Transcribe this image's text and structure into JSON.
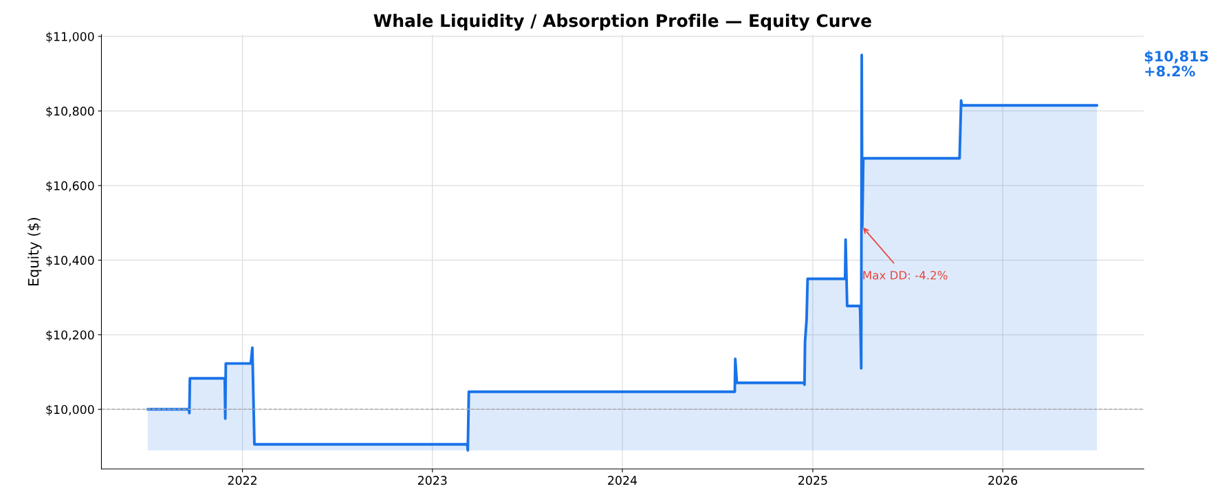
{
  "chart_data": {
    "type": "area",
    "title": "Whale Liquidity / Absorption Profile — Equity Curve",
    "ylabel": "Equity ($)",
    "x": [
      "2021-07-03",
      "2021-09-20",
      "2021-09-21",
      "2021-09-22",
      "2021-11-28",
      "2021-11-29",
      "2021-11-30",
      "2022-01-17",
      "2022-01-20",
      "2022-01-24",
      "2023-03-09",
      "2023-03-10",
      "2023-03-12",
      "2024-08-04",
      "2024-08-05",
      "2024-08-08",
      "2024-12-15",
      "2024-12-16",
      "2024-12-17",
      "2024-12-20",
      "2024-12-22",
      "2025-03-04",
      "2025-03-05",
      "2025-03-08",
      "2025-04-01",
      "2025-04-02",
      "2025-04-04",
      "2025-04-05",
      "2025-04-06",
      "2025-04-08",
      "2025-10-10",
      "2025-10-13",
      "2025-10-14",
      "2026-07-01"
    ],
    "series": [
      {
        "color": "#1a73e8",
        "values": [
          10000,
          10000,
          9990,
          10083,
          10083,
          9975,
          10123,
          10123,
          10165,
          9906,
          9906,
          9890,
          10047,
          10047,
          10135,
          10071,
          10071,
          10066,
          10180,
          10240,
          10350,
          10350,
          10455,
          10277,
          10277,
          10265,
          10110,
          10950,
          10490,
          10673,
          10673,
          10828,
          10815,
          10815
        ]
      }
    ],
    "xlim": [
      "2021-04-05",
      "2026-09-29"
    ],
    "xticks": [
      "2022",
      "2023",
      "2024",
      "2025",
      "2026"
    ],
    "ylim": [
      9840,
      11005
    ],
    "yticks": [
      {
        "value": 10000,
        "label": "$10,000"
      },
      {
        "value": 10200,
        "label": "$10,200"
      },
      {
        "value": 10400,
        "label": "$10,400"
      },
      {
        "value": 10600,
        "label": "$10,600"
      },
      {
        "value": 10800,
        "label": "$10,800"
      },
      {
        "value": 11000,
        "label": "$11,000"
      }
    ],
    "ref_lines": [
      {
        "axis": "y",
        "value": 10000,
        "color": "#aaaaaa",
        "line_style": "dashed"
      }
    ],
    "annotations": [
      {
        "text": "Max DD: -4.2%",
        "x": "2025-04-06",
        "y": 10490
      },
      "$10,815\n+8.2%"
    ],
    "grid": true,
    "legend": false
  }
}
